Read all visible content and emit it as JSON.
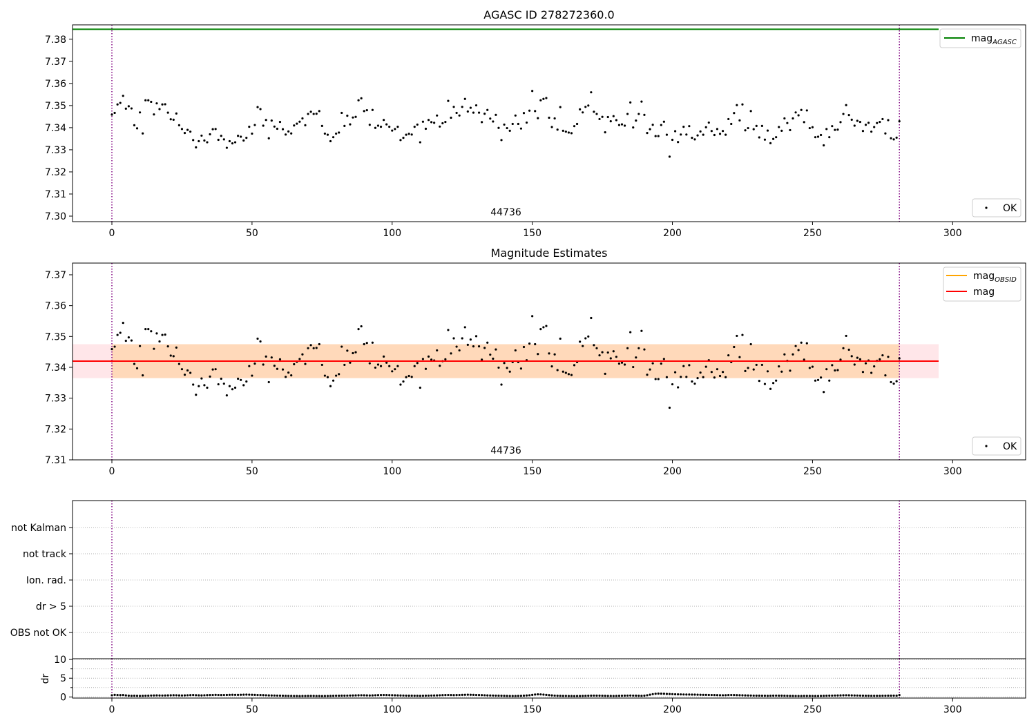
{
  "figure": {
    "background": "#ffffff"
  },
  "chart_data": [
    {
      "type": "scatter",
      "title": "AGASC ID 278272360.0",
      "xlabel": "",
      "ylabel": "",
      "xlim": [
        -14.05,
        326.05
      ],
      "ylim": [
        7.2975,
        7.3865
      ],
      "xticks": [
        "0",
        "50",
        "100",
        "150",
        "200",
        "250",
        "300"
      ],
      "yticks": [
        "7.30",
        "7.31",
        "7.32",
        "7.33",
        "7.34",
        "7.35",
        "7.36",
        "7.37",
        "7.38"
      ],
      "grid": false,
      "obsid_label": "44736",
      "obsid_label_x": 140,
      "vlines": [
        0,
        281
      ],
      "vline_color": "#800080",
      "hlines": [
        {
          "name": "mag_AGASC",
          "legend_text": "mag",
          "legend_sub": "AGASC",
          "y": 7.3845,
          "x0": -14.05,
          "x1": 295,
          "color": "#008000"
        }
      ],
      "legends": [
        {
          "position": "upper-right",
          "entries": [
            {
              "type": "line",
              "text": "mag",
              "sub": "AGASC",
              "color": "#008000"
            }
          ]
        },
        {
          "position": "lower-right",
          "entries": [
            {
              "type": "point",
              "text": "OK",
              "color": "#000000"
            }
          ]
        }
      ],
      "series": [
        {
          "name": "OK",
          "color": "#000000",
          "ref": "mag_series"
        }
      ]
    },
    {
      "type": "scatter",
      "title": "Magnitude Estimates",
      "xlabel": "",
      "ylabel": "",
      "xlim": [
        -14.05,
        326.05
      ],
      "ylim": [
        7.31,
        7.3738
      ],
      "xticks": [
        "0",
        "50",
        "100",
        "150",
        "200",
        "250",
        "300"
      ],
      "yticks": [
        "7.31",
        "7.32",
        "7.33",
        "7.34",
        "7.35",
        "7.36",
        "7.37"
      ],
      "grid": false,
      "obsid_label": "44736",
      "obsid_label_x": 140,
      "vlines": [
        0,
        281
      ],
      "vline_color": "#800080",
      "bands": [
        {
          "y0": 7.3365,
          "y1": 7.3475,
          "x0": -14.05,
          "x1": 295,
          "color": "#ffb6c1",
          "opacity": 0.35
        },
        {
          "y0": 7.3365,
          "y1": 7.3475,
          "x0": 0,
          "x1": 281,
          "color": "#ffa500",
          "opacity": 0.2
        }
      ],
      "hlines": [
        {
          "name": "mag_OBSID",
          "y": 7.342,
          "x0": 0,
          "x1": 281,
          "color": "#ffa500"
        },
        {
          "name": "mag",
          "y": 7.342,
          "x0": -14.05,
          "x1": 295,
          "color": "#ff0000"
        }
      ],
      "legends": [
        {
          "position": "upper-right",
          "entries": [
            {
              "type": "line",
              "text": "mag",
              "sub": "OBSID",
              "color": "#ffa500"
            },
            {
              "type": "line",
              "text": "mag",
              "sub": "",
              "color": "#ff0000"
            }
          ]
        },
        {
          "position": "lower-right",
          "entries": [
            {
              "type": "point",
              "text": "OK",
              "color": "#000000"
            }
          ]
        }
      ],
      "series": [
        {
          "name": "OK",
          "color": "#000000",
          "ref": "mag_series"
        }
      ]
    },
    {
      "type": "scatter",
      "title": "",
      "xlabel": "",
      "ylabel": "",
      "xlim": [
        -14.05,
        326.05
      ],
      "categories": [
        "OBS not OK",
        "dr > 5",
        "Ion. rad.",
        "not track",
        "not Kalman"
      ],
      "grid": true,
      "vlines": [
        0,
        281
      ],
      "vline_color": "#800080",
      "flag_points": []
    },
    {
      "type": "scatter",
      "title": "",
      "xlabel": "",
      "ylabel": "dr",
      "xlim": [
        -14.05,
        326.05
      ],
      "ylim": [
        -0.3,
        10.2
      ],
      "xticks": [
        "0",
        "50",
        "100",
        "150",
        "200",
        "250",
        "300"
      ],
      "yticks": [
        "0",
        "5",
        "10"
      ],
      "grid": true,
      "vlines": [
        0,
        281
      ],
      "vline_color": "#800080",
      "series": [
        {
          "name": "dr",
          "color": "#000000",
          "ref": "dr_series"
        }
      ]
    }
  ],
  "mag_series": [
    7.3459,
    7.3467,
    7.3505,
    7.3512,
    7.3544,
    7.3486,
    7.3497,
    7.3487,
    7.3411,
    7.3397,
    7.3469,
    7.3374,
    7.3524,
    7.3524,
    7.3517,
    7.346,
    7.351,
    7.3484,
    7.3505,
    7.3506,
    7.3468,
    7.3438,
    7.3436,
    7.3464,
    7.3411,
    7.3394,
    7.3376,
    7.339,
    7.3382,
    7.3344,
    7.3311,
    7.3339,
    7.3364,
    7.3342,
    7.3334,
    7.337,
    7.3393,
    7.3394,
    7.3345,
    7.3363,
    7.3347,
    7.3309,
    7.3339,
    7.3329,
    7.3334,
    7.3363,
    7.3359,
    7.3342,
    7.3354,
    7.3404,
    7.3373,
    7.3412,
    7.3493,
    7.3484,
    7.3409,
    7.3435,
    7.3352,
    7.3432,
    7.3405,
    7.3395,
    7.3426,
    7.3393,
    7.3369,
    7.3383,
    7.3374,
    7.341,
    7.3418,
    7.3427,
    7.3442,
    7.3411,
    7.3462,
    7.3472,
    7.3462,
    7.3463,
    7.3475,
    7.3408,
    7.3373,
    7.3368,
    7.3339,
    7.3357,
    7.3373,
    7.3378,
    7.3467,
    7.3408,
    7.3454,
    7.3415,
    7.3446,
    7.3449,
    7.3524,
    7.3533,
    7.3475,
    7.3479,
    7.3413,
    7.348,
    7.3399,
    7.3409,
    7.3404,
    7.3435,
    7.3415,
    7.3404,
    7.3387,
    7.3394,
    7.3404,
    7.3344,
    7.3354,
    7.3368,
    7.3372,
    7.3369,
    7.3404,
    7.3414,
    7.3334,
    7.3427,
    7.3395,
    7.3435,
    7.3425,
    7.3422,
    7.3455,
    7.3405,
    7.342,
    7.3426,
    7.3521,
    7.3445,
    7.3494,
    7.3467,
    7.3455,
    7.3494,
    7.353,
    7.3473,
    7.349,
    7.3468,
    7.3501,
    7.3468,
    7.3425,
    7.3463,
    7.348,
    7.3441,
    7.3428,
    7.3458,
    7.3399,
    7.3344,
    7.3414,
    7.3398,
    7.3386,
    7.3417,
    7.3455,
    7.3417,
    7.3396,
    7.3466,
    7.3423,
    7.3477,
    7.3566,
    7.3475,
    7.3443,
    7.3524,
    7.353,
    7.3534,
    7.3445,
    7.3403,
    7.3442,
    7.3391,
    7.3493,
    7.3386,
    7.3382,
    7.3378,
    7.3375,
    7.3407,
    7.3417,
    7.3483,
    7.3469,
    7.3494,
    7.35,
    7.356,
    7.3472,
    7.3462,
    7.3439,
    7.3449,
    7.3379,
    7.3448,
    7.3429,
    7.3452,
    7.3434,
    7.3412,
    7.3415,
    7.3409,
    7.3462,
    7.3514,
    7.3401,
    7.3432,
    7.3462,
    7.3518,
    7.3458,
    7.3376,
    7.3393,
    7.3413,
    7.3362,
    7.3362,
    7.3412,
    7.3427,
    7.3368,
    7.3269,
    7.3345,
    7.3384,
    7.3335,
    7.3369,
    7.3404,
    7.3369,
    7.3407,
    7.3354,
    7.3347,
    7.3365,
    7.3383,
    7.3368,
    7.3402,
    7.3423,
    7.3385,
    7.3367,
    7.3394,
    7.3372,
    7.3385,
    7.3368,
    7.3439,
    7.3417,
    7.3466,
    7.3502,
    7.3433,
    7.3505,
    7.3388,
    7.3398,
    7.3475,
    7.3393,
    7.3408,
    7.3356,
    7.3408,
    7.3346,
    7.3387,
    7.333,
    7.3349,
    7.3357,
    7.3403,
    7.3386,
    7.3442,
    7.3421,
    7.3389,
    7.3442,
    7.3469,
    7.3456,
    7.348,
    7.3425,
    7.3478,
    7.3398,
    7.3402,
    7.3357,
    7.3359,
    7.3367,
    7.332,
    7.3394,
    7.3357,
    7.3407,
    7.339,
    7.3391,
    7.3425,
    7.3462,
    7.3502,
    7.3457,
    7.3436,
    7.3409,
    7.3431,
    7.3426,
    7.3385,
    7.3413,
    7.3422,
    7.3382,
    7.3403,
    7.3421,
    7.3426,
    7.3439,
    7.3374,
    7.3434,
    7.3352,
    7.3347,
    7.3355,
    7.3429
  ],
  "dr_series": [
    0.45,
    0.55,
    0.5,
    0.48,
    0.5,
    0.42,
    0.35,
    0.3,
    0.32,
    0.3,
    0.28,
    0.3,
    0.33,
    0.35,
    0.38,
    0.4,
    0.42,
    0.4,
    0.38,
    0.4,
    0.42,
    0.44,
    0.46,
    0.45,
    0.42,
    0.4,
    0.42,
    0.45,
    0.48,
    0.5,
    0.47,
    0.44,
    0.42,
    0.45,
    0.48,
    0.5,
    0.52,
    0.55,
    0.52,
    0.5,
    0.52,
    0.54,
    0.56,
    0.58,
    0.56,
    0.55,
    0.57,
    0.6,
    0.62,
    0.6,
    0.58,
    0.55,
    0.52,
    0.5,
    0.48,
    0.45,
    0.42,
    0.4,
    0.38,
    0.36,
    0.34,
    0.32,
    0.3,
    0.28,
    0.27,
    0.26,
    0.25,
    0.24,
    0.25,
    0.26,
    0.27,
    0.28,
    0.27,
    0.26,
    0.25,
    0.24,
    0.25,
    0.26,
    0.28,
    0.3,
    0.32,
    0.33,
    0.34,
    0.35,
    0.36,
    0.38,
    0.4,
    0.42,
    0.44,
    0.45,
    0.44,
    0.42,
    0.4,
    0.42,
    0.45,
    0.48,
    0.5,
    0.52,
    0.5,
    0.48,
    0.46,
    0.44,
    0.42,
    0.4,
    0.38,
    0.36,
    0.35,
    0.34,
    0.33,
    0.32,
    0.3,
    0.32,
    0.34,
    0.36,
    0.38,
    0.4,
    0.42,
    0.45,
    0.48,
    0.5,
    0.52,
    0.5,
    0.48,
    0.5,
    0.52,
    0.55,
    0.58,
    0.6,
    0.58,
    0.55,
    0.52,
    0.5,
    0.48,
    0.45,
    0.42,
    0.4,
    0.38,
    0.36,
    0.34,
    0.32,
    0.3,
    0.28,
    0.26,
    0.25,
    0.26,
    0.28,
    0.3,
    0.35,
    0.4,
    0.45,
    0.55,
    0.65,
    0.7,
    0.68,
    0.62,
    0.55,
    0.48,
    0.42,
    0.36,
    0.32,
    0.3,
    0.28,
    0.27,
    0.26,
    0.25,
    0.24,
    0.25,
    0.26,
    0.28,
    0.3,
    0.32,
    0.34,
    0.36,
    0.35,
    0.34,
    0.32,
    0.3,
    0.28,
    0.27,
    0.26,
    0.28,
    0.3,
    0.32,
    0.34,
    0.36,
    0.38,
    0.36,
    0.34,
    0.32,
    0.3,
    0.35,
    0.45,
    0.6,
    0.75,
    0.85,
    0.9,
    0.88,
    0.85,
    0.8,
    0.78,
    0.75,
    0.72,
    0.7,
    0.68,
    0.66,
    0.65,
    0.64,
    0.63,
    0.62,
    0.6,
    0.58,
    0.56,
    0.55,
    0.54,
    0.52,
    0.5,
    0.48,
    0.46,
    0.45,
    0.47,
    0.5,
    0.52,
    0.5,
    0.48,
    0.46,
    0.44,
    0.42,
    0.4,
    0.38,
    0.36,
    0.35,
    0.34,
    0.33,
    0.32,
    0.3,
    0.32,
    0.34,
    0.36,
    0.35,
    0.34,
    0.32,
    0.3,
    0.28,
    0.27,
    0.26,
    0.25,
    0.26,
    0.27,
    0.28,
    0.27,
    0.26,
    0.25,
    0.26,
    0.28,
    0.3,
    0.32,
    0.34,
    0.36,
    0.38,
    0.4,
    0.42,
    0.44,
    0.45,
    0.44,
    0.42,
    0.4,
    0.38,
    0.36,
    0.34,
    0.33,
    0.32,
    0.31,
    0.3,
    0.3,
    0.31,
    0.32,
    0.33,
    0.34,
    0.35,
    0.36,
    0.35,
    0.5
  ]
}
